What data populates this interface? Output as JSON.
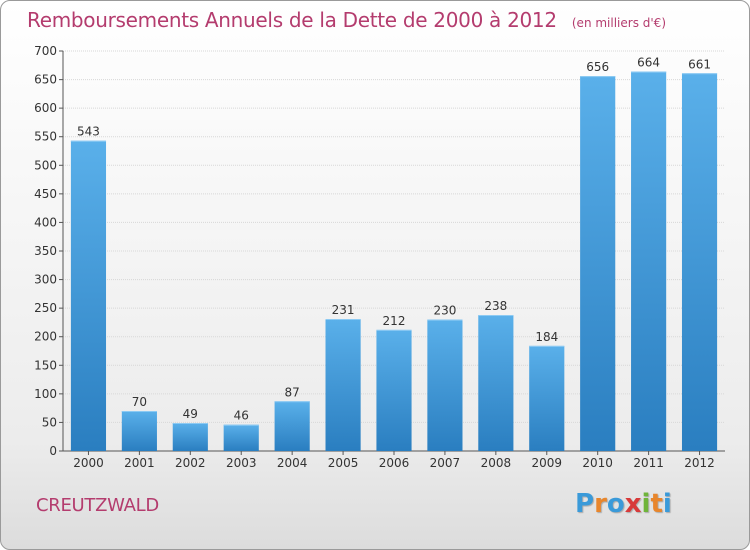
{
  "title": "Remboursements Annuels de la Dette de 2000 à 2012",
  "unit": "(en milliers d'€)",
  "commune": "CREUTZWALD",
  "logo": {
    "text": "Proxiti",
    "letters": [
      {
        "ch": "P",
        "color": "#3a9ad9"
      },
      {
        "ch": "r",
        "color": "#e8862c"
      },
      {
        "ch": "o",
        "color": "#3a9ad9"
      },
      {
        "ch": "x",
        "color": "#d83a3a"
      },
      {
        "ch": "i",
        "color": "#6fb43a"
      },
      {
        "ch": "t",
        "color": "#e8862c"
      },
      {
        "ch": "i",
        "color": "#3a9ad9"
      }
    ]
  },
  "chart_data": {
    "type": "bar",
    "categories": [
      "2000",
      "2001",
      "2002",
      "2003",
      "2004",
      "2005",
      "2006",
      "2007",
      "2008",
      "2009",
      "2010",
      "2011",
      "2012"
    ],
    "values": [
      543,
      70,
      49,
      46,
      87,
      231,
      212,
      230,
      238,
      184,
      656,
      664,
      661
    ],
    "ylim": [
      0,
      700
    ],
    "yticks": [
      0,
      50,
      100,
      150,
      200,
      250,
      300,
      350,
      400,
      450,
      500,
      550,
      600,
      650,
      700
    ],
    "grid": true,
    "legend": "none",
    "colors": {
      "bar_light": "#5ab0ea",
      "bar_dark": "#2a7ec0",
      "grid": "#d7d7d7"
    }
  }
}
